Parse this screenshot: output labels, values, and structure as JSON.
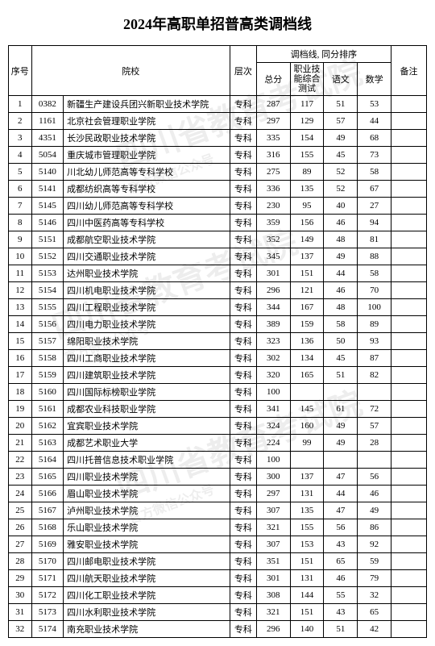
{
  "title": "2024年高职单招普高类调档线",
  "header": {
    "idx": "序号",
    "school": "院校",
    "level": "层次",
    "score_group": "调档线, 同分排序",
    "total": "总分",
    "skill": "职业技能综合测试",
    "chinese": "语文",
    "math": "数学",
    "remark": "备注"
  },
  "level_label": "专科",
  "watermark_main": "四川省教育考试院",
  "watermark_sub": "官方微信公众号",
  "colors": {
    "bg": "#ffffff",
    "text": "#000000",
    "border": "#000000",
    "watermark": "rgba(0,0,0,0.07)"
  },
  "rows": [
    {
      "i": 1,
      "code": "0382",
      "name": "新疆生产建设兵团兴新职业技术学院",
      "t": 287,
      "s": 117,
      "c": 51,
      "m": 53
    },
    {
      "i": 2,
      "code": "1161",
      "name": "北京社会管理职业学院",
      "t": 297,
      "s": 129,
      "c": 57,
      "m": 44
    },
    {
      "i": 3,
      "code": "4351",
      "name": "长沙民政职业技术学院",
      "t": 335,
      "s": 154,
      "c": 49,
      "m": 68
    },
    {
      "i": 4,
      "code": "5054",
      "name": "重庆城市管理职业学院",
      "t": 316,
      "s": 155,
      "c": 45,
      "m": 73
    },
    {
      "i": 5,
      "code": "5140",
      "name": "川北幼儿师范高等专科学校",
      "t": 275,
      "s": 89,
      "c": 52,
      "m": 58
    },
    {
      "i": 6,
      "code": "5141",
      "name": "成都纺织高等专科学校",
      "t": 336,
      "s": 135,
      "c": 52,
      "m": 67
    },
    {
      "i": 7,
      "code": "5145",
      "name": "四川幼儿师范高等专科学校",
      "t": 230,
      "s": 95,
      "c": 40,
      "m": 27
    },
    {
      "i": 8,
      "code": "5146",
      "name": "四川中医药高等专科学校",
      "t": 359,
      "s": 156,
      "c": 46,
      "m": 94
    },
    {
      "i": 9,
      "code": "5151",
      "name": "成都航空职业技术学院",
      "t": 352,
      "s": 149,
      "c": 48,
      "m": 81
    },
    {
      "i": 10,
      "code": "5152",
      "name": "四川交通职业技术学院",
      "t": 345,
      "s": 137,
      "c": 49,
      "m": 88
    },
    {
      "i": 11,
      "code": "5153",
      "name": "达州职业技术学院",
      "t": 301,
      "s": 151,
      "c": 44,
      "m": 58
    },
    {
      "i": 12,
      "code": "5154",
      "name": "四川机电职业技术学院",
      "t": 296,
      "s": 121,
      "c": 46,
      "m": 70
    },
    {
      "i": 13,
      "code": "5155",
      "name": "四川工程职业技术学院",
      "t": 344,
      "s": 167,
      "c": 48,
      "m": 100
    },
    {
      "i": 14,
      "code": "5156",
      "name": "四川电力职业技术学院",
      "t": 389,
      "s": 159,
      "c": 58,
      "m": 89
    },
    {
      "i": 15,
      "code": "5157",
      "name": "绵阳职业技术学院",
      "t": 323,
      "s": 136,
      "c": 50,
      "m": 93
    },
    {
      "i": 16,
      "code": "5158",
      "name": "四川工商职业技术学院",
      "t": 302,
      "s": 134,
      "c": 45,
      "m": 87
    },
    {
      "i": 17,
      "code": "5159",
      "name": "四川建筑职业技术学院",
      "t": 320,
      "s": 165,
      "c": 51,
      "m": 82
    },
    {
      "i": 18,
      "code": "5160",
      "name": "四川国际标榜职业学院",
      "t": 100,
      "s": "",
      "c": "",
      "m": ""
    },
    {
      "i": 19,
      "code": "5161",
      "name": "成都农业科技职业学院",
      "t": 341,
      "s": 145,
      "c": 61,
      "m": 72
    },
    {
      "i": 20,
      "code": "5162",
      "name": "宜宾职业技术学院",
      "t": 324,
      "s": 160,
      "c": 49,
      "m": 57
    },
    {
      "i": 21,
      "code": "5163",
      "name": "成都艺术职业大学",
      "t": 224,
      "s": 99,
      "c": 49,
      "m": 28
    },
    {
      "i": 22,
      "code": "5164",
      "name": "四川托普信息技术职业学院",
      "t": 100,
      "s": "",
      "c": "",
      "m": ""
    },
    {
      "i": 23,
      "code": "5165",
      "name": "四川职业技术学院",
      "t": 300,
      "s": 137,
      "c": 47,
      "m": 56
    },
    {
      "i": 24,
      "code": "5166",
      "name": "眉山职业技术学院",
      "t": 297,
      "s": 131,
      "c": 44,
      "m": 46
    },
    {
      "i": 25,
      "code": "5167",
      "name": "泸州职业技术学院",
      "t": 307,
      "s": 135,
      "c": 47,
      "m": 49
    },
    {
      "i": 26,
      "code": "5168",
      "name": "乐山职业技术学院",
      "t": 321,
      "s": 155,
      "c": 56,
      "m": 86
    },
    {
      "i": 27,
      "code": "5169",
      "name": "雅安职业技术学院",
      "t": 307,
      "s": 153,
      "c": 43,
      "m": 92
    },
    {
      "i": 28,
      "code": "5170",
      "name": "四川邮电职业技术学院",
      "t": 351,
      "s": 151,
      "c": 65,
      "m": 59
    },
    {
      "i": 29,
      "code": "5171",
      "name": "四川航天职业技术学院",
      "t": 301,
      "s": 131,
      "c": 46,
      "m": 79
    },
    {
      "i": 30,
      "code": "5172",
      "name": "四川化工职业技术学院",
      "t": 308,
      "s": 144,
      "c": 55,
      "m": 32
    },
    {
      "i": 31,
      "code": "5173",
      "name": "四川水利职业技术学院",
      "t": 321,
      "s": 151,
      "c": 43,
      "m": 65
    },
    {
      "i": 32,
      "code": "5174",
      "name": "南充职业技术学院",
      "t": 296,
      "s": 140,
      "c": 51,
      "m": 42
    }
  ]
}
